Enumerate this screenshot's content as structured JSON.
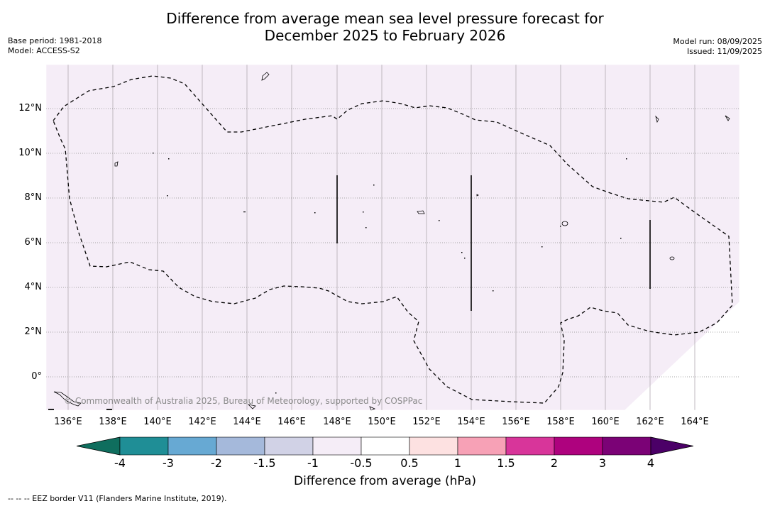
{
  "title": {
    "line1": "Difference from average mean sea level pressure forecast for",
    "line2": "December 2025 to February 2026"
  },
  "meta_left": {
    "base_period": "Base period: 1981-2018",
    "model": "Model: ACCESS-S2"
  },
  "meta_right": {
    "model_run": "Model run: 08/09/2025",
    "issued": "Issued: 11/09/2025"
  },
  "latitude_labels": [
    "12°N",
    "10°N",
    "8°N",
    "6°N",
    "4°N",
    "2°N",
    "0°"
  ],
  "longitude_labels": [
    "136°E",
    "138°E",
    "140°E",
    "142°E",
    "144°E",
    "146°E",
    "148°E",
    "150°E",
    "152°E",
    "154°E",
    "156°E",
    "158°E",
    "160°E",
    "162°E",
    "164°E"
  ],
  "copyright": "© Commonwealth of Australia 2025, Bureau of Meteorology, supported by COSPPac",
  "colorbar": {
    "ticks": [
      "-4",
      "-3",
      "-2",
      "-1.5",
      "-1",
      "-0.5",
      "0.5",
      "1",
      "1.5",
      "2",
      "3",
      "4"
    ],
    "colors": [
      "#1f8e96",
      "#67a9d3",
      "#a5b9db",
      "#d1d2e6",
      "#f5edf7",
      "#ffffff",
      "#fde1e1",
      "#f7a1b6",
      "#d8359a",
      "#ae027e",
      "#7b0276"
    ],
    "under_color": "#0f6e5e",
    "over_color": "#4b0067",
    "label": "Difference from average (hPa)"
  },
  "map_fill_color": "#f5edf7",
  "footer": "-- -- -- EEZ border V11 (Flanders Marine Institute, 2019)."
}
